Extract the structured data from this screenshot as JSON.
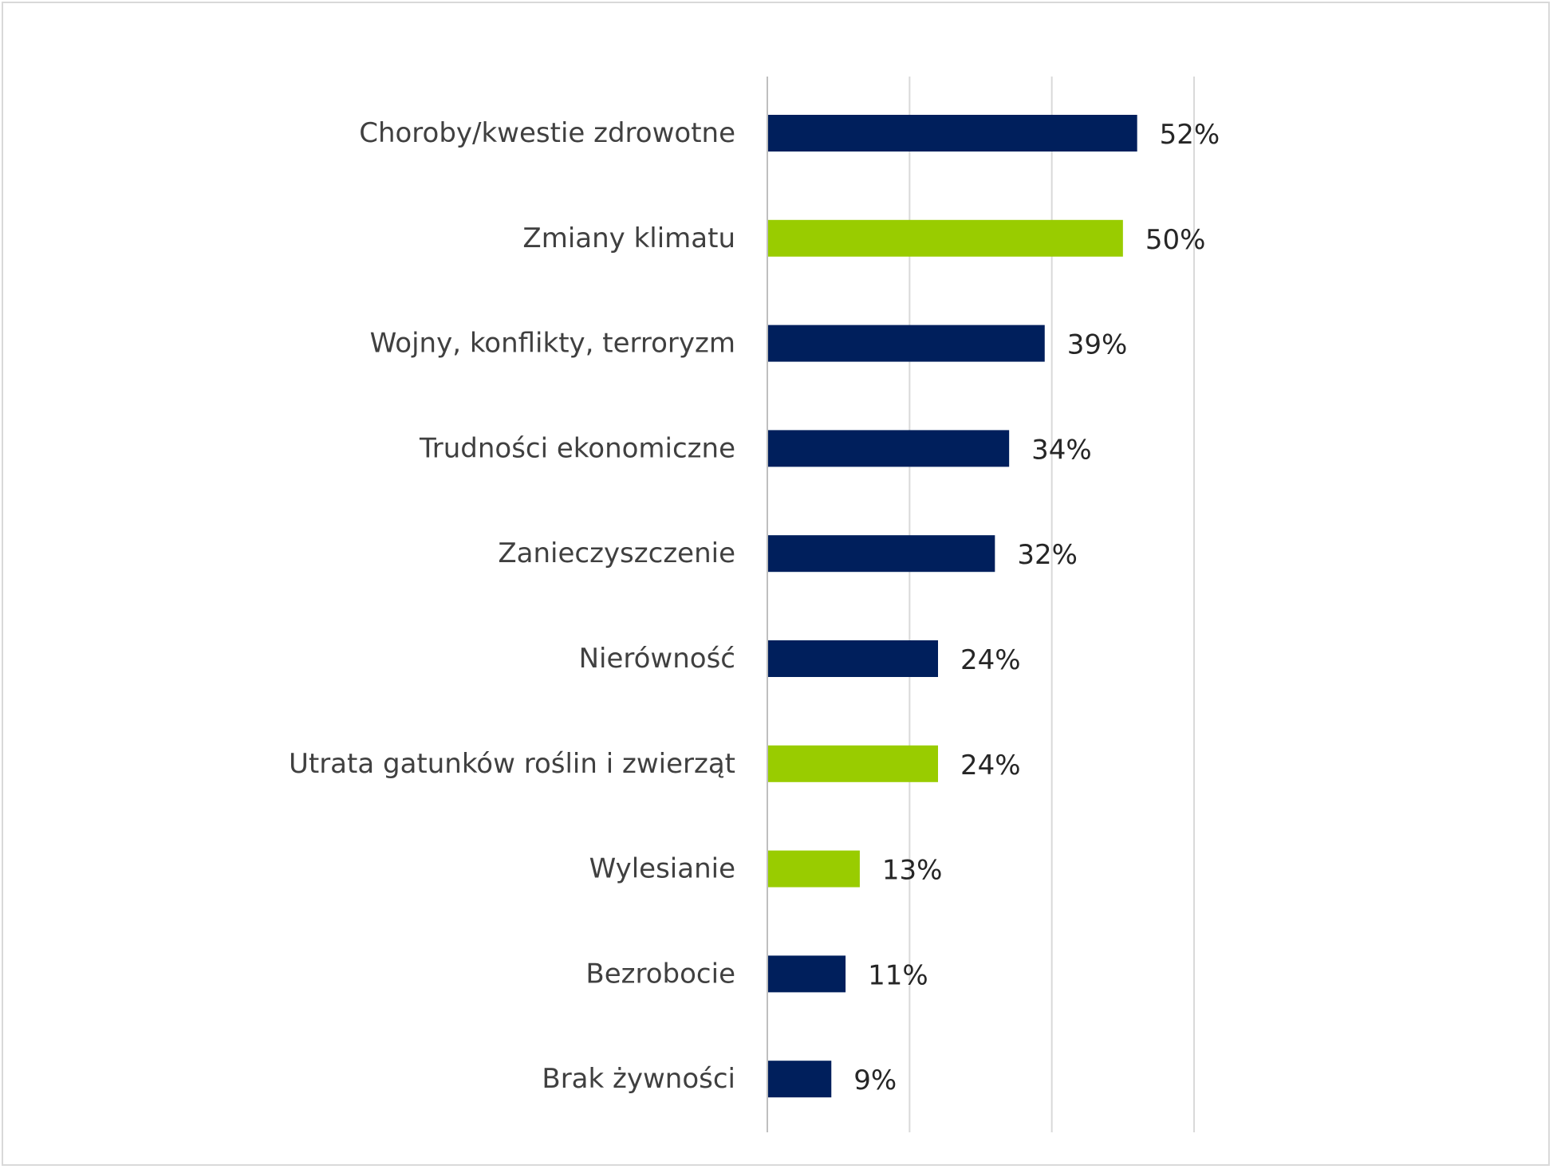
{
  "chart_data": {
    "type": "bar",
    "orientation": "horizontal",
    "categories": [
      "Choroby/kwestie zdrowotne",
      "Zmiany klimatu",
      "Wojny, konflikty, terroryzm",
      "Trudności ekonomiczne",
      "Zanieczyszczenie",
      "Nierówność",
      "Utrata gatunków roślin i zwierząt",
      "Wylesianie",
      "Bezrobocie",
      "Brak żywności"
    ],
    "values": [
      52,
      50,
      39,
      34,
      32,
      24,
      24,
      13,
      11,
      9
    ],
    "value_labels": [
      "52%",
      "50%",
      "39%",
      "34%",
      "32%",
      "24%",
      "24%",
      "13%",
      "11%",
      "9%"
    ],
    "bar_colors": [
      "#001F5C",
      "#99CC00",
      "#001F5C",
      "#001F5C",
      "#001F5C",
      "#001F5C",
      "#99CC00",
      "#99CC00",
      "#001F5C",
      "#001F5C"
    ],
    "xlim": [
      0,
      60
    ],
    "gridlines": [
      0,
      20,
      40,
      60
    ],
    "grid": true,
    "legend": "none",
    "gridline_color": "#D9D9D9",
    "axis_color": "#BFBFBF"
  }
}
